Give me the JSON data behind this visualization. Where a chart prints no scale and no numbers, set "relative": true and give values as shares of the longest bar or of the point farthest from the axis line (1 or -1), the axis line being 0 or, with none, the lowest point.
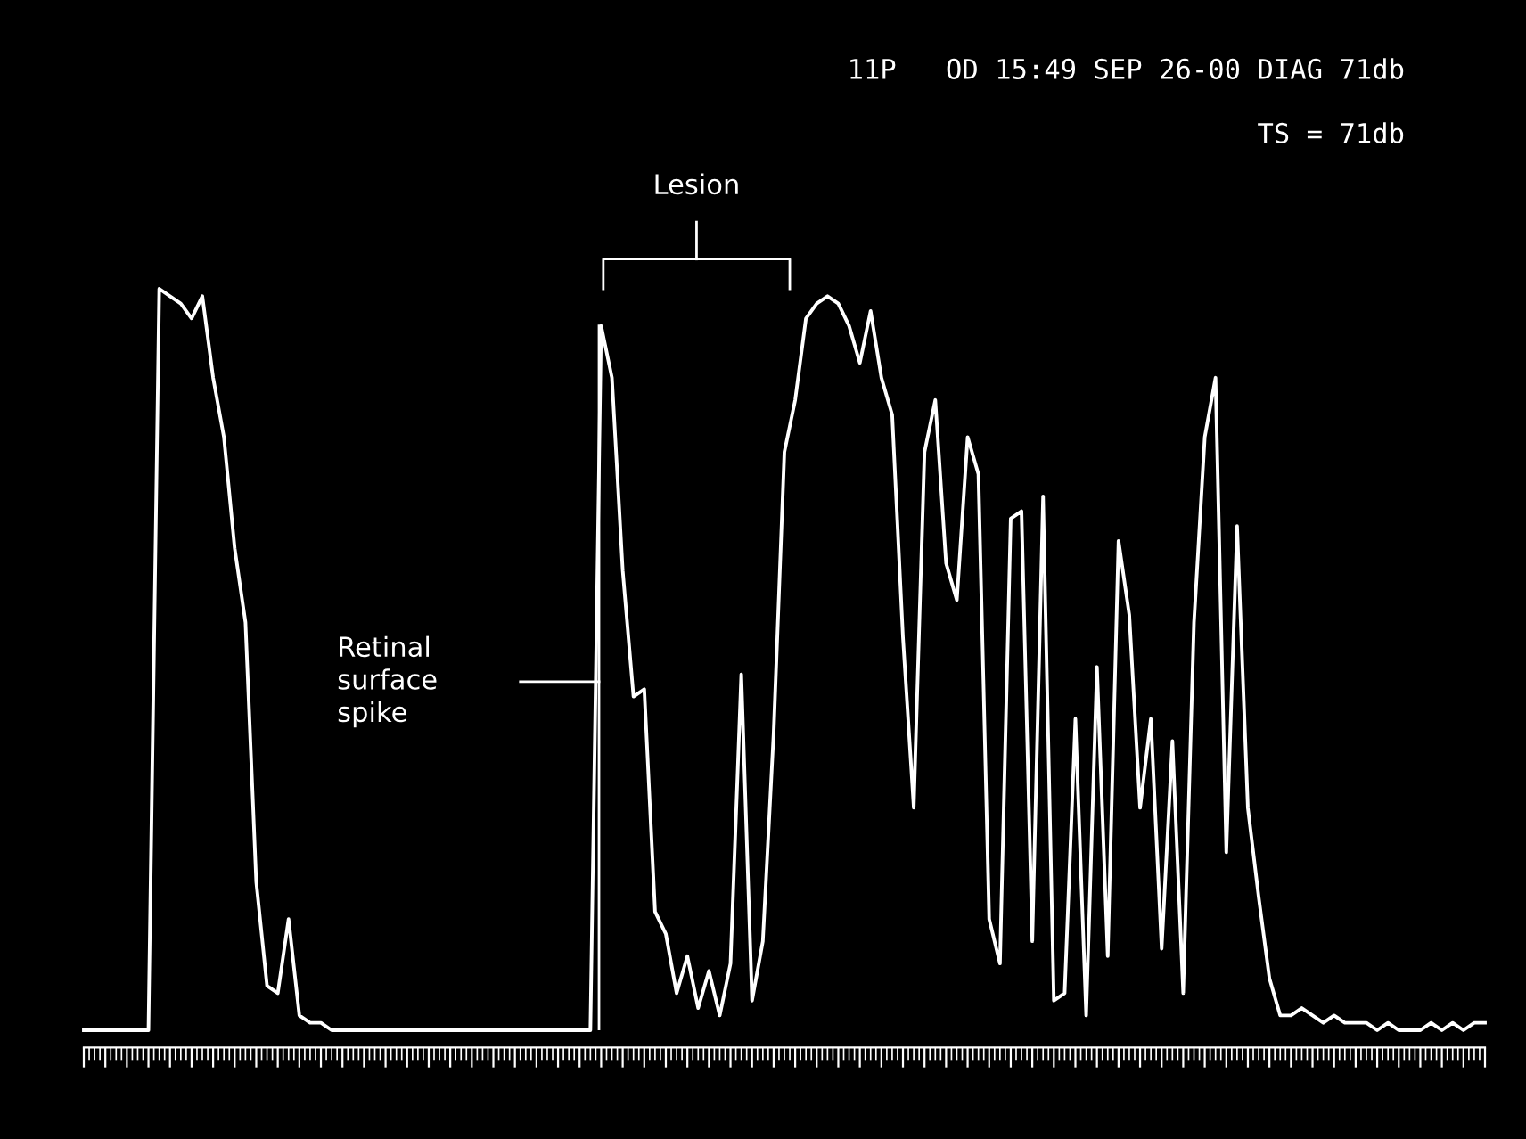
{
  "chart_data": {
    "type": "line",
    "relative": true,
    "tick_labels": false,
    "grid": false,
    "legend": false,
    "marker": "none",
    "line_style": "solid",
    "title": "11P   OD 15:49 SEP 26-00 DIAG 71db",
    "subtitle": "TS = 71db",
    "annotations": [
      "Lesion",
      "Retinal\nsurface\nspike"
    ],
    "categories": [
      null,
      null,
      null,
      null,
      null,
      null,
      null,
      null,
      null,
      null,
      null,
      null,
      null,
      null,
      null,
      null,
      null,
      null,
      null,
      null,
      null,
      null,
      null,
      null,
      null,
      null,
      null,
      null,
      null,
      null,
      null,
      null,
      null,
      null,
      null,
      null,
      null,
      null,
      null,
      null,
      null,
      null,
      null,
      null,
      null,
      null,
      null,
      null,
      null,
      null,
      null,
      null,
      null,
      null,
      null,
      null,
      null,
      null,
      null,
      null,
      null,
      null,
      null,
      null,
      null,
      null,
      null,
      null,
      null,
      null,
      null,
      null,
      null,
      null,
      null,
      null,
      null,
      null,
      null,
      null,
      null,
      null,
      null,
      null,
      null,
      null,
      null,
      null,
      null,
      null,
      null,
      null,
      null,
      null,
      null,
      null,
      null,
      null,
      null,
      null,
      null,
      null,
      null,
      null,
      null,
      null,
      null,
      null,
      null,
      null,
      null,
      null,
      null,
      null,
      null,
      null,
      null,
      null,
      null,
      null,
      null,
      null,
      null,
      null,
      null,
      null,
      null,
      null,
      null,
      null,
      null
    ],
    "series": [
      {
        "color": "#ffffff",
        "values": [
          0,
          0,
          0,
          0,
          0,
          0,
          0,
          1.0,
          0.99,
          0.98,
          0.96,
          0.99,
          0.88,
          0.8,
          0.65,
          0.55,
          0.2,
          0.06,
          0.05,
          0.15,
          0.02,
          0.01,
          0.01,
          0,
          0,
          0,
          0,
          0,
          0,
          0,
          0,
          0,
          0,
          0,
          0,
          0,
          0,
          0,
          0,
          0,
          0,
          0,
          0,
          0,
          0,
          0,
          0,
          0,
          0.95,
          0.88,
          0.62,
          0.45,
          0.46,
          0.16,
          0.13,
          0.05,
          0.1,
          0.03,
          0.08,
          0.02,
          0.09,
          0.48,
          0.04,
          0.12,
          0.4,
          0.78,
          0.85,
          0.96,
          0.98,
          0.99,
          0.98,
          0.95,
          0.9,
          0.97,
          0.88,
          0.83,
          0.53,
          0.3,
          0.78,
          0.85,
          0.63,
          0.58,
          0.8,
          0.75,
          0.15,
          0.09,
          0.69,
          0.7,
          0.12,
          0.72,
          0.04,
          0.05,
          0.42,
          0.02,
          0.49,
          0.1,
          0.66,
          0.56,
          0.3,
          0.42,
          0.11,
          0.39,
          0.05,
          0.55,
          0.8,
          0.88,
          0.24,
          0.68,
          0.3,
          0.18,
          0.07,
          0.02,
          0.02,
          0.03,
          0.02,
          0.01,
          0.02,
          0.01,
          0.01,
          0.01,
          0,
          0.01,
          0,
          0,
          0,
          0.01,
          0,
          0.01,
          0,
          0.01,
          0.01
        ]
      }
    ]
  }
}
